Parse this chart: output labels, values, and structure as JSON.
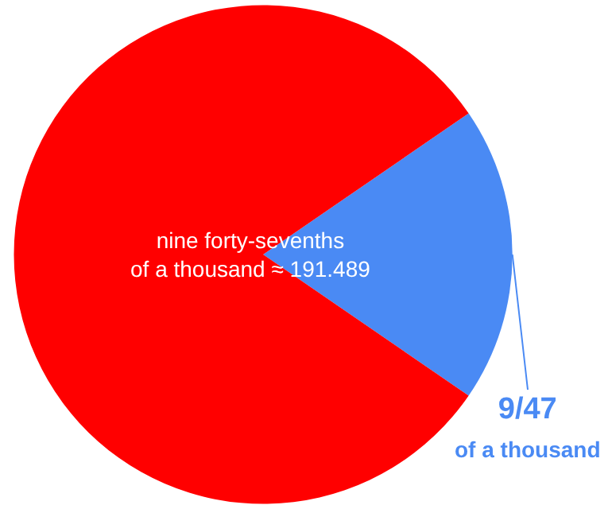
{
  "chart_data": {
    "type": "pie",
    "categories": [
      "9/47\nof a thousand",
      null
    ],
    "values": [
      19.149,
      80.851
    ],
    "colors": [
      "#4a8af4",
      "#ff0000"
    ],
    "annotations": [
      "nine forty-sevenths\nof a thousand ≈ 191.489"
    ],
    "legend": false
  }
}
